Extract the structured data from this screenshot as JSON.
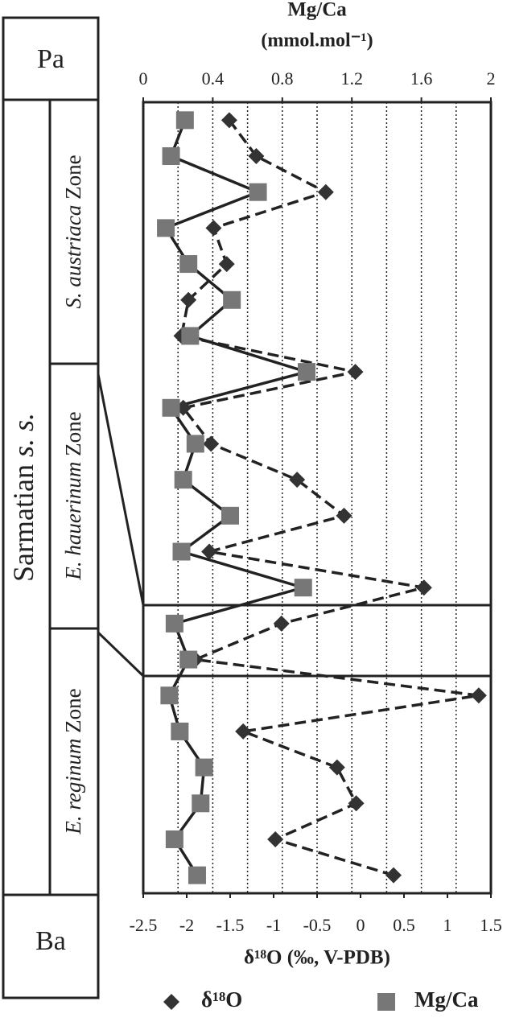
{
  "chart_data": {
    "type": "line",
    "title": "Mg/Ca",
    "x2label": "(mmol.mol⁻¹)",
    "xlabel": "δ¹⁸O (‰, V-PDB)",
    "categories": [
      null,
      null,
      null,
      null,
      null,
      null,
      null,
      null,
      null,
      null,
      null,
      null,
      null,
      null,
      null,
      null,
      null,
      null,
      null,
      null,
      null,
      null
    ],
    "xlim": [
      -2.5,
      1.5
    ],
    "xticks": [
      -2.5,
      -2,
      -1.5,
      -1,
      -0.5,
      0,
      0.5,
      1,
      1.5
    ],
    "x2lim": [
      0,
      2
    ],
    "x2ticks": [
      0,
      0.4,
      0.8,
      1.2,
      1.6,
      2
    ],
    "x2grid": [
      0.2,
      0.4,
      0.6,
      0.8,
      1,
      1.2,
      1.4,
      1.6,
      1.8
    ],
    "series": [
      {
        "name": "δ¹⁸O",
        "color": "#333333",
        "marker": "diamond",
        "dash": true,
        "axis": "x",
        "values": [
          -1.51,
          -1.2,
          -0.4,
          -1.69,
          -1.54,
          -1.98,
          -2.06,
          -0.06,
          -2.04,
          -1.72,
          -0.73,
          -0.19,
          -1.74,
          0.73,
          -0.91,
          -1.9,
          1.36,
          -1.35,
          -0.27,
          -0.05,
          -0.98,
          0.38
        ]
      },
      {
        "name": "Mg/Ca",
        "color": "#777777",
        "marker": "square",
        "dash": false,
        "axis": "x2",
        "values": [
          0.24,
          0.16,
          0.66,
          0.13,
          0.26,
          0.51,
          0.27,
          0.94,
          0.16,
          0.3,
          0.23,
          0.5,
          0.22,
          0.92,
          0.18,
          0.26,
          0.15,
          0.21,
          0.35,
          0.33,
          0.18,
          0.31
        ]
      }
    ]
  },
  "strat": {
    "top": "Pa",
    "bottom": "Ba",
    "stage": "Sarmatian",
    "stage_italic": "s. s.",
    "zones": [
      {
        "italic": "S. austriaca",
        "text": "Zone"
      },
      {
        "italic": "E. hauerinum",
        "text": "Zone"
      },
      {
        "italic": "E. reginum",
        "text": "Zone"
      }
    ]
  }
}
